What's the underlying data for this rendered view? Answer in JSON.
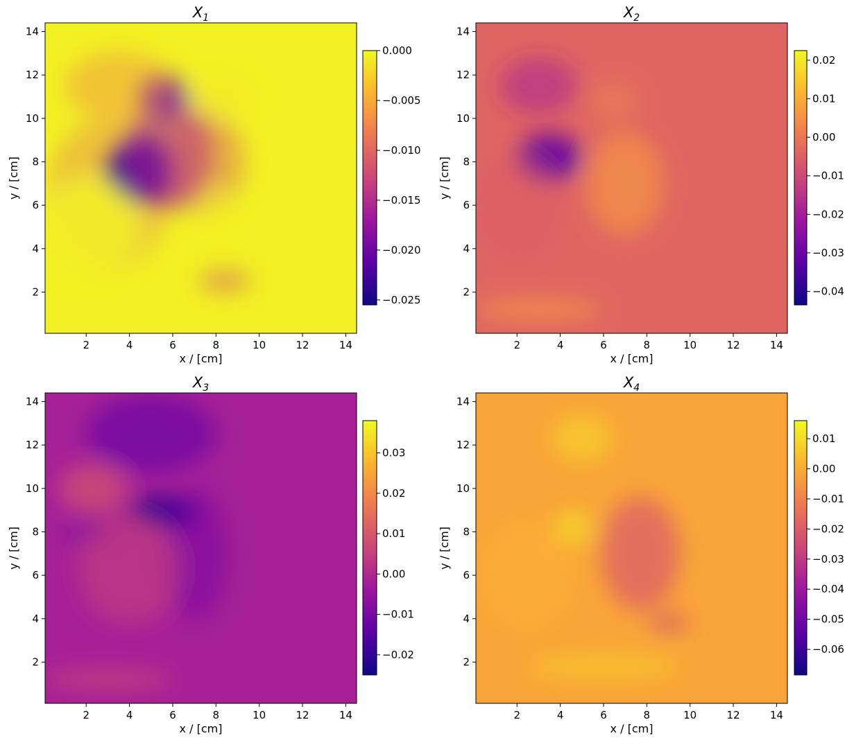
{
  "colormap": [
    "#0d0887",
    "#5c01a6",
    "#9c179e",
    "#cc4778",
    "#ed7953",
    "#fdb42f",
    "#f0f921"
  ],
  "chart_data": [
    {
      "type": "heatmap",
      "title": {
        "main": "X",
        "sub": "1"
      },
      "xlabel": "x / [cm]",
      "ylabel": "y / [cm]",
      "xlim": [
        0.1,
        14.5
      ],
      "ylim": [
        0.1,
        14.4
      ],
      "xticks": [
        2,
        4,
        6,
        8,
        10,
        12,
        14
      ],
      "yticks": [
        2,
        4,
        6,
        8,
        10,
        12,
        14
      ],
      "colorbar": {
        "min": -0.0255,
        "max": 0.0,
        "ticks": [
          0.0,
          -0.005,
          -0.01,
          -0.015,
          -0.02,
          -0.025
        ],
        "tick_labels": [
          "0.000",
          "−0.005",
          "−0.010",
          "−0.015",
          "−0.020",
          "−0.025"
        ]
      },
      "background_value": -0.0005,
      "features": [
        {
          "x": 3.0,
          "y": 6.5,
          "rx": 2.8,
          "ry": 3.5,
          "value": -0.01,
          "w": 0.35
        },
        {
          "x": 4.5,
          "y": 7.6,
          "rx": 1.6,
          "ry": 1.5,
          "value": -0.024,
          "w": 0.95
        },
        {
          "x": 5.8,
          "y": 8.4,
          "rx": 2.0,
          "ry": 2.6,
          "value": -0.016,
          "w": 0.65
        },
        {
          "x": 5.6,
          "y": 11.1,
          "rx": 1.2,
          "ry": 0.9,
          "value": -0.02,
          "w": 0.75
        },
        {
          "x": 7.5,
          "y": 8.0,
          "rx": 1.8,
          "ry": 2.4,
          "value": -0.011,
          "w": 0.45
        },
        {
          "x": 3.5,
          "y": 11.5,
          "rx": 2.5,
          "ry": 1.6,
          "value": -0.008,
          "w": 0.4
        },
        {
          "x": 2.2,
          "y": 5.0,
          "rx": 2.2,
          "ry": 2.2,
          "value": -0.0005,
          "w": 0.85
        },
        {
          "x": 8.2,
          "y": 11.0,
          "rx": 1.4,
          "ry": 0.9,
          "value": -0.001,
          "w": 0.8
        },
        {
          "x": 8.4,
          "y": 2.5,
          "rx": 1.2,
          "ry": 0.5,
          "value": -0.012,
          "w": 0.5
        },
        {
          "x": 8.0,
          "y": 6.0,
          "rx": 0.6,
          "ry": 0.7,
          "value": -0.001,
          "w": 0.7
        }
      ]
    },
    {
      "type": "heatmap",
      "title": {
        "main": "X",
        "sub": "2"
      },
      "xlabel": "x / [cm]",
      "ylabel": "y / [cm]",
      "xlim": [
        0.1,
        14.5
      ],
      "ylim": [
        0.1,
        14.4
      ],
      "xticks": [
        2,
        4,
        6,
        8,
        10,
        12,
        14
      ],
      "yticks": [
        2,
        4,
        6,
        8,
        10,
        12,
        14
      ],
      "colorbar": {
        "min": -0.0435,
        "max": 0.0225,
        "ticks": [
          0.02,
          0.01,
          0.0,
          -0.01,
          -0.02,
          -0.03,
          -0.04
        ],
        "tick_labels": [
          "0.02",
          "0.01",
          "0.00",
          "−0.01",
          "−0.02",
          "−0.03",
          "−0.04"
        ]
      },
      "background_value": -0.004,
      "features": [
        {
          "x": 3.5,
          "y": 8.2,
          "rx": 1.5,
          "ry": 1.1,
          "value": -0.032,
          "w": 0.85
        },
        {
          "x": 3.0,
          "y": 11.5,
          "rx": 1.8,
          "ry": 1.3,
          "value": -0.018,
          "w": 0.6
        },
        {
          "x": 7.0,
          "y": 7.0,
          "rx": 1.8,
          "ry": 2.4,
          "value": 0.006,
          "w": 0.7
        },
        {
          "x": 3.0,
          "y": 1.2,
          "rx": 3.0,
          "ry": 0.5,
          "value": 0.008,
          "w": 0.6
        },
        {
          "x": 2.0,
          "y": 6.0,
          "rx": 2.0,
          "ry": 2.5,
          "value": -0.006,
          "w": 0.4
        },
        {
          "x": 6.5,
          "y": 10.8,
          "rx": 1.2,
          "ry": 1.0,
          "value": 0.004,
          "w": 0.4
        }
      ]
    },
    {
      "type": "heatmap",
      "title": {
        "main": "X",
        "sub": "3"
      },
      "xlabel": "x / [cm]",
      "ylabel": "y / [cm]",
      "xlim": [
        0.1,
        14.5
      ],
      "ylim": [
        0.1,
        14.4
      ],
      "xticks": [
        2,
        4,
        6,
        8,
        10,
        12,
        14
      ],
      "yticks": [
        2,
        4,
        6,
        8,
        10,
        12,
        14
      ],
      "colorbar": {
        "min": -0.025,
        "max": 0.038,
        "ticks": [
          0.03,
          0.02,
          0.01,
          0.0,
          -0.01,
          -0.02
        ],
        "tick_labels": [
          "0.03",
          "0.02",
          "0.01",
          "0.00",
          "−0.01",
          "−0.02"
        ]
      },
      "background_value": -0.002,
      "features": [
        {
          "x": 5.5,
          "y": 8.9,
          "rx": 1.6,
          "ry": 0.7,
          "value": -0.022,
          "w": 0.9
        },
        {
          "x": 5.0,
          "y": 12.5,
          "rx": 3.0,
          "ry": 1.8,
          "value": -0.014,
          "w": 0.6
        },
        {
          "x": 7.0,
          "y": 7.0,
          "rx": 1.5,
          "ry": 3.0,
          "value": -0.011,
          "w": 0.5
        },
        {
          "x": 2.2,
          "y": 8.0,
          "rx": 1.2,
          "ry": 0.5,
          "value": -0.014,
          "w": 0.5
        },
        {
          "x": 2.3,
          "y": 10.0,
          "rx": 1.6,
          "ry": 1.1,
          "value": 0.012,
          "w": 0.6
        },
        {
          "x": 4.0,
          "y": 6.3,
          "rx": 2.4,
          "ry": 2.6,
          "value": 0.006,
          "w": 0.55
        },
        {
          "x": 3.0,
          "y": 1.2,
          "rx": 3.0,
          "ry": 0.5,
          "value": 0.01,
          "w": 0.5
        }
      ]
    },
    {
      "type": "heatmap",
      "title": {
        "main": "X",
        "sub": "4"
      },
      "xlabel": "x / [cm]",
      "ylabel": "y / [cm]",
      "xlim": [
        0.1,
        14.5
      ],
      "ylim": [
        0.1,
        14.4
      ],
      "xticks": [
        2,
        4,
        6,
        8,
        10,
        12,
        14
      ],
      "yticks": [
        2,
        4,
        6,
        8,
        10,
        12,
        14
      ],
      "colorbar": {
        "min": -0.0685,
        "max": 0.016,
        "ticks": [
          0.01,
          0.0,
          -0.01,
          -0.02,
          -0.03,
          -0.04,
          -0.05,
          -0.06
        ],
        "tick_labels": [
          "0.01",
          "0.00",
          "−0.01",
          "−0.02",
          "−0.03",
          "−0.04",
          "−0.05",
          "−0.06"
        ]
      },
      "background_value": -0.002,
      "features": [
        {
          "x": 7.7,
          "y": 7.0,
          "rx": 1.8,
          "ry": 2.6,
          "value": -0.02,
          "w": 0.75
        },
        {
          "x": 9.0,
          "y": 3.8,
          "rx": 0.9,
          "ry": 0.4,
          "value": -0.03,
          "w": 0.6
        },
        {
          "x": 5.0,
          "y": 12.3,
          "rx": 1.4,
          "ry": 1.1,
          "value": 0.008,
          "w": 0.7
        },
        {
          "x": 4.6,
          "y": 8.2,
          "rx": 0.8,
          "ry": 0.8,
          "value": 0.012,
          "w": 0.7
        },
        {
          "x": 6.0,
          "y": 1.8,
          "rx": 3.5,
          "ry": 0.6,
          "value": 0.008,
          "w": 0.6
        },
        {
          "x": 2.5,
          "y": 6.0,
          "rx": 2.2,
          "ry": 2.6,
          "value": 0.003,
          "w": 0.4
        }
      ]
    }
  ]
}
